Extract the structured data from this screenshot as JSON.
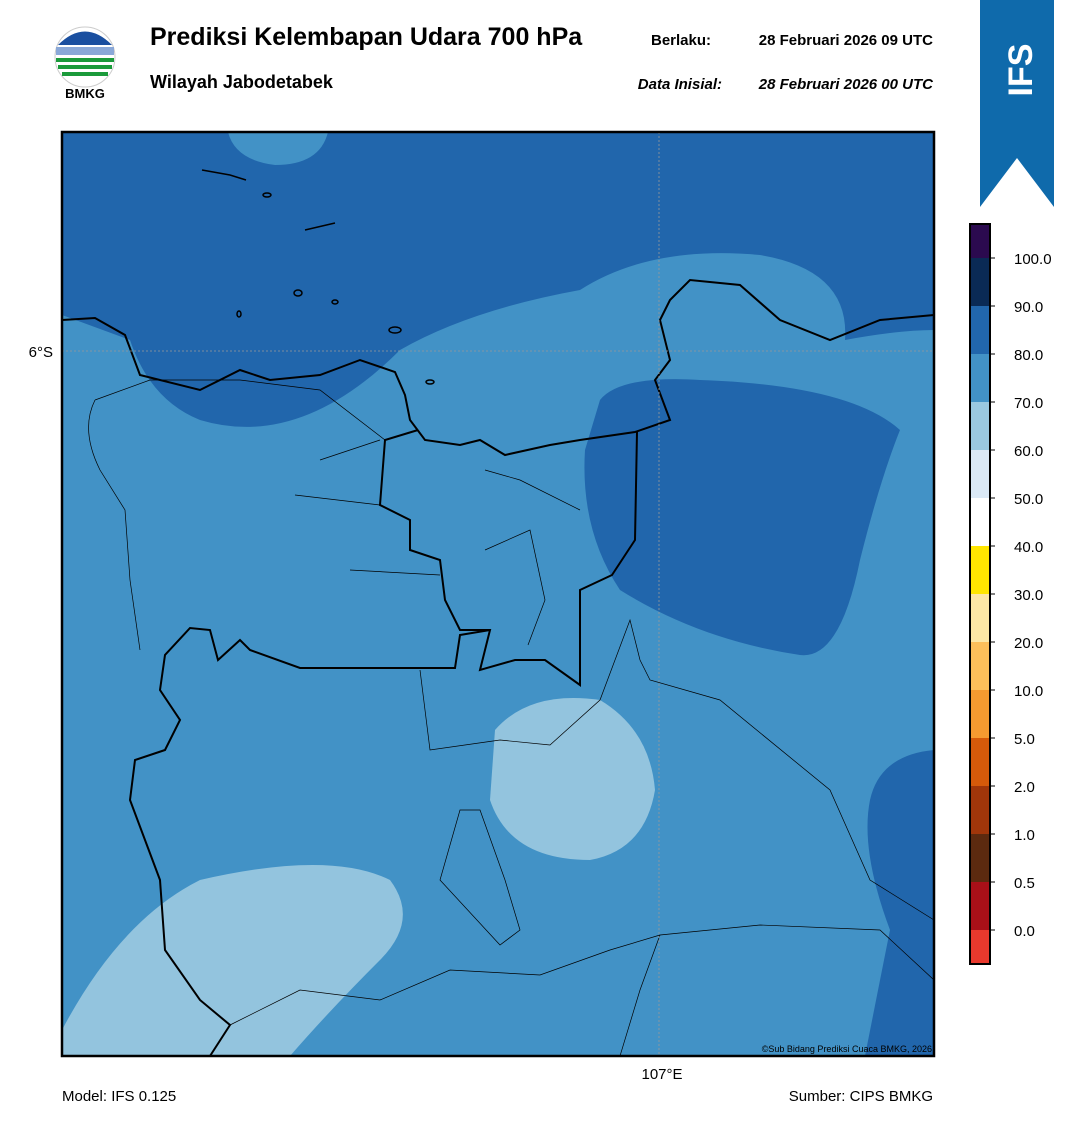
{
  "header": {
    "logo_text": "BMKG",
    "title": "Prediksi Kelembapan Udara 700 hPa",
    "valid_label": "Berlaku:",
    "valid_time": "28 Februari 2026 09 UTC",
    "region": "Wilayah Jabodetabek",
    "init_label": "Data Inisial:",
    "init_time": "28 Februari 2026 00 UTC",
    "badge": "IFS"
  },
  "map": {
    "lat_label": "6°S",
    "lon_label": "107°E",
    "credit": "©Sub Bidang Prediksi Cuaca BMKG, 2026"
  },
  "colorbar": {
    "labels": [
      "0.0",
      "0.5",
      "1.0",
      "2.0",
      "5.0",
      "10.0",
      "20.0",
      "30.0",
      "40.0",
      "50.0",
      "60.0",
      "70.0",
      "80.0",
      "90.0",
      "100.0"
    ],
    "colors": [
      "#e8392d",
      "#a81018",
      "#5c2a0f",
      "#a0360a",
      "#d65a0a",
      "#f59a30",
      "#fdbf5a",
      "#fde7a5",
      "#ffe600",
      "#ffffff",
      "#dbe9f6",
      "#9ac8e0",
      "#4292c6",
      "#2166ac",
      "#0a2a55",
      "#2b0a4f"
    ]
  },
  "footer": {
    "model": "Model: IFS 0.125",
    "source": "Sumber: CIPS BMKG"
  }
}
